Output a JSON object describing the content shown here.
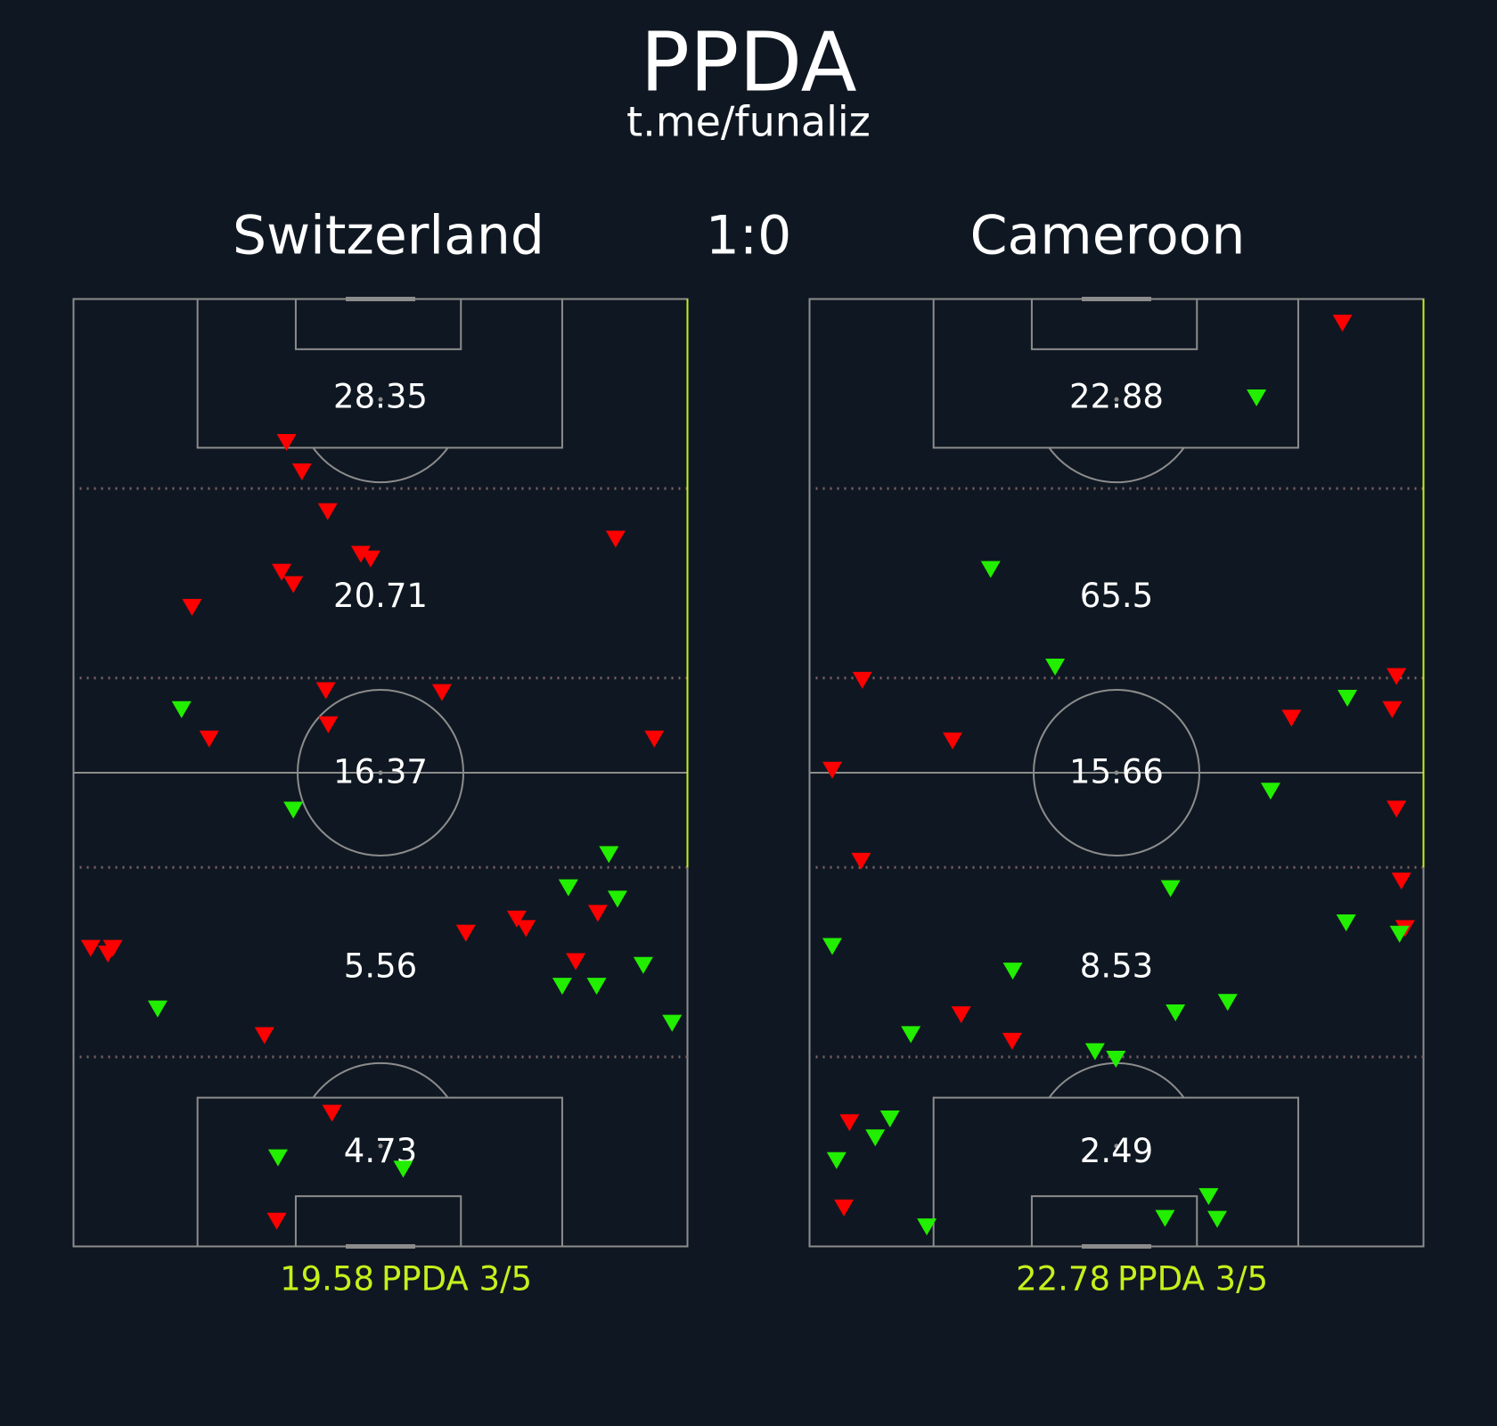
{
  "title": "PPDA",
  "subtitle": "t.me/funaliz",
  "score": "1:0",
  "chart_data": [
    {
      "type": "scatter",
      "title": "Switzerland",
      "xlim": [
        0,
        100
      ],
      "ylim": [
        100,
        0
      ],
      "zones": [
        28.35,
        20.71,
        16.37,
        5.56,
        4.73
      ],
      "ppda": 19.58,
      "ppda_label": "PPDA 3/5",
      "series": [
        {
          "color": "#ff0000",
          "x": [
            34.7,
            37.2,
            41.4,
            46.8,
            48.4,
            33.9,
            35.8,
            19.3,
            88.3,
            41.1,
            60.0,
            41.5,
            22.1,
            94.6,
            2.8,
            5.6,
            6.4,
            63.9,
            72.2,
            73.7,
            85.4,
            81.8,
            31.1,
            42.1,
            33.1
          ],
          "values": [
            15.1,
            18.2,
            22.4,
            26.9,
            27.4,
            28.8,
            30.1,
            32.5,
            25.3,
            41.3,
            41.5,
            44.9,
            46.4,
            46.4,
            68.5,
            69.1,
            68.5,
            66.9,
            65.4,
            66.4,
            64.8,
            69.9,
            77.7,
            85.9,
            97.3
          ]
        },
        {
          "color": "#22ee00",
          "x": [
            17.6,
            35.8,
            87.2,
            80.6,
            88.6,
            92.8,
            79.6,
            85.2,
            13.7,
            97.5,
            33.3,
            53.7
          ],
          "values": [
            43.3,
            53.9,
            58.6,
            62.1,
            63.3,
            70.3,
            72.5,
            72.5,
            74.9,
            76.4,
            90.6,
            91.8
          ]
        }
      ]
    },
    {
      "type": "scatter",
      "title": "Cameroon",
      "xlim": [
        0,
        100
      ],
      "ylim": [
        100,
        0
      ],
      "zones": [
        22.88,
        65.5,
        15.66,
        8.53,
        2.49
      ],
      "ppda": 22.78,
      "ppda_label": "PPDA 3/5",
      "series": [
        {
          "color": "#ff0000",
          "x": [
            86.8,
            8.6,
            95.6,
            94.9,
            78.5,
            23.3,
            3.7,
            95.6,
            8.4,
            96.4,
            97.0,
            24.7,
            33.0,
            6.5,
            5.6
          ],
          "values": [
            2.5,
            40.2,
            39.8,
            43.3,
            44.2,
            46.6,
            49.7,
            53.8,
            59.3,
            61.4,
            66.4,
            75.5,
            78.3,
            86.9,
            95.9
          ]
        },
        {
          "color": "#22ee00",
          "x": [
            72.8,
            29.5,
            40.0,
            87.6,
            75.1,
            58.8,
            87.4,
            96.1,
            3.7,
            33.1,
            59.6,
            68.1,
            16.5,
            46.5,
            49.9,
            13.1,
            10.7,
            4.4,
            65.0,
            57.9,
            66.4,
            19.1
          ],
          "values": [
            10.4,
            28.5,
            38.8,
            42.1,
            51.9,
            62.2,
            65.8,
            67.0,
            68.3,
            70.9,
            75.3,
            74.2,
            77.6,
            79.4,
            80.2,
            86.5,
            88.5,
            90.9,
            94.7,
            97.0,
            97.1,
            97.9
          ]
        }
      ]
    }
  ]
}
